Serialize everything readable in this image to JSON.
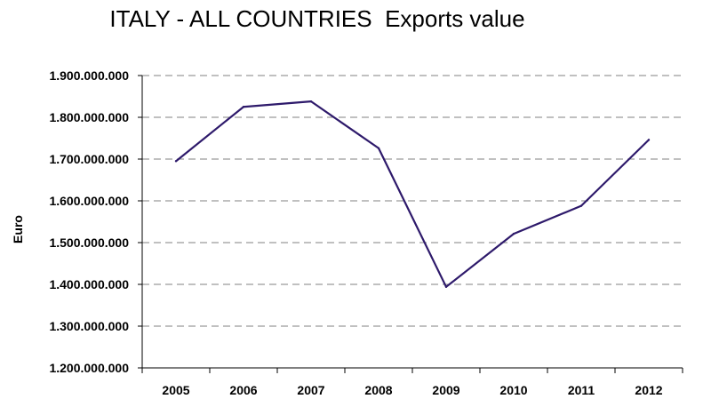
{
  "chart_data": {
    "type": "line",
    "title": "ITALY - ALL COUNTRIES  Exports value",
    "xlabel": "",
    "ylabel": "Euro",
    "categories": [
      "2005",
      "2006",
      "2007",
      "2008",
      "2009",
      "2010",
      "2011",
      "2012"
    ],
    "series": [
      {
        "values": [
          1695000000,
          1825000000,
          1838000000,
          1726000000,
          1394000000,
          1521000000,
          1588000000,
          1746000000
        ]
      }
    ],
    "ylim": [
      1200000000,
      1900000000
    ],
    "yticks": [
      1200000000,
      1300000000,
      1400000000,
      1500000000,
      1600000000,
      1700000000,
      1800000000,
      1900000000
    ],
    "ytick_labels": [
      "1.200.000.000",
      "1.300.000.000",
      "1.400.000.000",
      "1.500.000.000",
      "1.600.000.000",
      "1.700.000.000",
      "1.800.000.000",
      "1.900.000.000"
    ],
    "grid": "horizontal dashed",
    "legend": "none",
    "line_color": "#2e1a6b"
  }
}
